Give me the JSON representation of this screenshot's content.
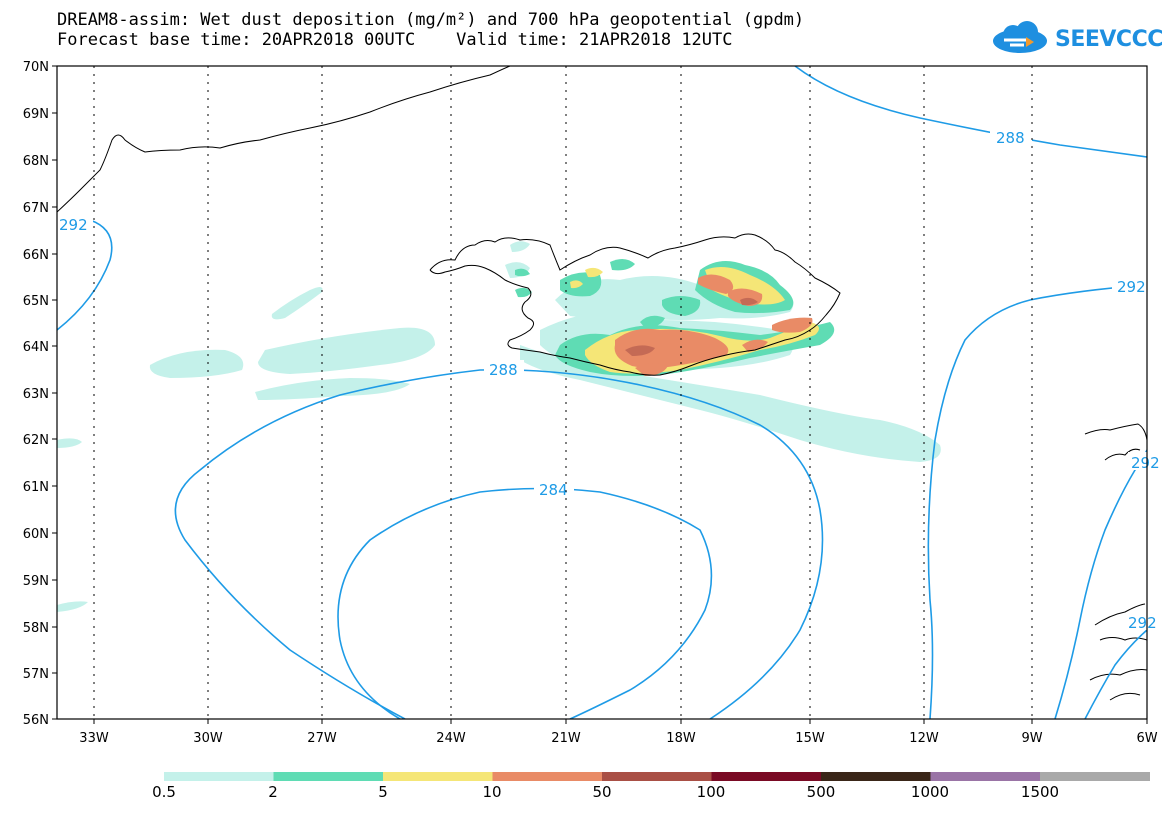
{
  "header": {
    "title_line1": "DREAM8-assim: Wet dust deposition (mg/m²) and 700 hPa geopotential (gpdm)",
    "title_line2": "Forecast base time: 20APR2018 00UTC    Valid time: 21APR2018 12UTC",
    "logo_text": "SEEVCCC"
  },
  "axes": {
    "lat_labels": [
      "70N",
      "69N",
      "68N",
      "67N",
      "66N",
      "65N",
      "64N",
      "63N",
      "62N",
      "61N",
      "60N",
      "59N",
      "58N",
      "57N",
      "56N"
    ],
    "lon_labels": [
      "33W",
      "30W",
      "27W",
      "24W",
      "21W",
      "18W",
      "15W",
      "12W",
      "9W",
      "6W"
    ]
  },
  "contours": {
    "labels": [
      "288",
      "292",
      "288",
      "284",
      "292",
      "292",
      "292"
    ],
    "color": "#1e9be6"
  },
  "legend": {
    "colors": [
      "#c4f1ea",
      "#5fdcb4",
      "#f5e677",
      "#e98b66",
      "#a94f45",
      "#7a0a24",
      "#3a2618",
      "#9a74a6",
      "#a9a9a9"
    ],
    "labels": [
      "0.5",
      "2",
      "5",
      "10",
      "50",
      "100",
      "500",
      "1000",
      "1500"
    ]
  },
  "palette": {
    "contour": "#1e9be6",
    "coast": "#000000",
    "logo": "#1e8fe0"
  }
}
